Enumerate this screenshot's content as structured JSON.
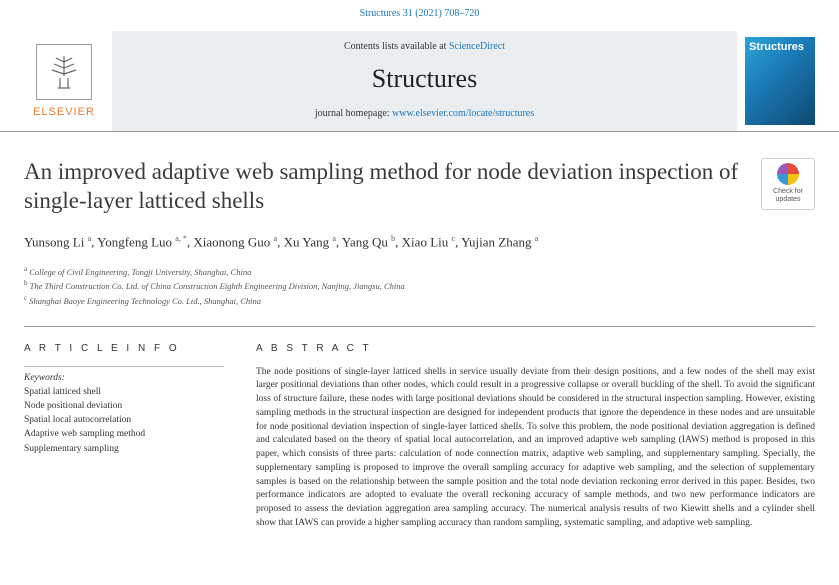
{
  "citation": "Structures 31 (2021) 708–720",
  "header": {
    "publisher": "ELSEVIER",
    "contents_prefix": "Contents lists available at ",
    "contents_link": "ScienceDirect",
    "journal_name": "Structures",
    "homepage_prefix": "journal homepage: ",
    "homepage_link": "www.elsevier.com/locate/structures",
    "cover_label": "Structures"
  },
  "article": {
    "title": "An improved adaptive web sampling method for node deviation inspection of single-layer latticed shells",
    "check_updates": "Check for updates"
  },
  "authors_html": "Yunsong Li <sup>a</sup>, Yongfeng Luo <sup>a, *</sup>, Xiaonong Guo <sup>a</sup>, Xu Yang <sup>a</sup>, Yang Qu <sup>b</sup>, Xiao Liu <sup>c</sup>, Yujian Zhang <sup>a</sup>",
  "affiliations": {
    "a": "College of Civil Engineering, Tongji University, Shanghai, China",
    "b": "The Third Construction Co. Ltd. of China Construction Eighth Engineering Division, Nanjing, Jiangsu, China",
    "c": "Shanghai Baoye Engineering Technology Co. Ltd., Shanghai, China"
  },
  "info": {
    "heading": "A R T I C L E  I N F O",
    "keywords_label": "Keywords:",
    "keywords": [
      "Spatial latticed shell",
      "Node positional deviation",
      "Spatial local autocorrelation",
      "Adaptive web sampling method",
      "Supplementary sampling"
    ]
  },
  "abstract": {
    "heading": "A B S T R A C T",
    "text": "The node positions of single-layer latticed shells in service usually deviate from their design positions, and a few nodes of the shell may exist larger positional deviations than other nodes, which could result in a progressive collapse or overall buckling of the shell. To avoid the significant loss of structure failure, these nodes with large positional deviations should be considered in the structural inspection sampling. However, existing sampling methods in the structural inspection are designed for independent products that ignore the dependence in these nodes and are unsuitable for node positional deviation inspection of single-layer latticed shells. To solve this problem, the node positional deviation aggregation is defined and calculated based on the theory of spatial local autocorrelation, and an improved adaptive web sampling (IAWS) method is proposed in this paper, which consists of three parts: calculation of node connection matrix, adaptive web sampling, and supplementary sampling. Specially, the supplementary sampling is proposed to improve the overall sampling accuracy for adaptive web sampling, and the selection of supplementary samples is based on the relationship between the sample position and the total node deviation reckoning error derived in this paper. Besides, two performance indicators are adopted to evaluate the overall reckoning accuracy of sample methods, and two new performance indicators are proposed to assess the deviation aggregation area sampling accuracy. The numerical analysis results of two Kiewitt shells and a cylinder shell show that IAWS can provide a higher sampling accuracy than random sampling, systematic sampling, and adaptive web sampling."
  }
}
